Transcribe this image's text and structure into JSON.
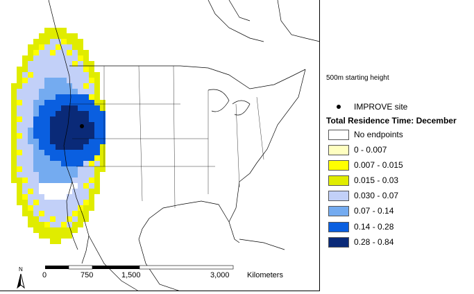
{
  "subtitle": "500m starting height",
  "legend": {
    "site_label": "IMPROVE site",
    "title": "Total Residence Time: December",
    "classes": [
      {
        "label": "No endpoints",
        "color": "#ffffff"
      },
      {
        "label": "0 - 0.007",
        "color": "#ffffc0"
      },
      {
        "label": "0.007 - 0.015",
        "color": "#ffff00"
      },
      {
        "label": "0.015 - 0.03",
        "color": "#e0ec00"
      },
      {
        "label": "0.030 - 0.07",
        "color": "#c2d0f8"
      },
      {
        "label": "0.07 - 0.14",
        "color": "#74abf0"
      },
      {
        "label": "0.14 - 0.28",
        "color": "#0a5fe0"
      },
      {
        "label": "0.28 - 0.84",
        "color": "#0a2a78"
      }
    ]
  },
  "scale_bar": {
    "ticks": [
      "0",
      "750",
      "1,500",
      "3,000"
    ],
    "unit": "Kilometers"
  },
  "north_arrow": {
    "label": "N",
    "icon": "north-arrow-icon"
  }
}
